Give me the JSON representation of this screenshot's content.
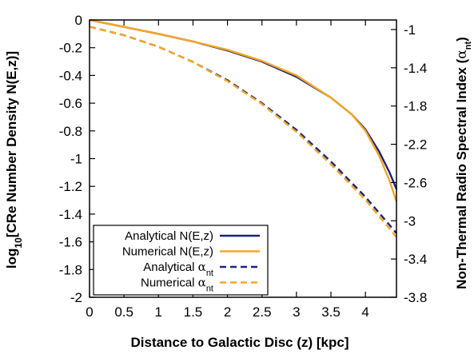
{
  "chart_data": {
    "type": "line",
    "xlabel": "Distance to Galactic Disc (z) [kpc]",
    "ylabel_left": {
      "prefix": "log",
      "sub": "10",
      "rest": "[CRe Number Density N(E,z)]"
    },
    "ylabel_right": {
      "text": "Non-Thermal Radio Spectral Index (",
      "sym": "α",
      "sub": "nt",
      "close": ")"
    },
    "xlim": [
      0,
      4.45
    ],
    "ylim_left": [
      -2,
      0
    ],
    "ylim_right": [
      -3.8,
      -0.9
    ],
    "xticks": [
      "0",
      "0.5",
      "1",
      "1.5",
      "2",
      "2.5",
      "3",
      "3.5",
      "4"
    ],
    "yticks_left": [
      "0",
      "-0.2",
      "-0.4",
      "-0.6",
      "-0.8",
      "-1",
      "-1.2",
      "-1.4",
      "-1.6",
      "-1.8",
      "-2"
    ],
    "yticks_right": [
      "-1",
      "-1.4",
      "-1.8",
      "-2.2",
      "-2.6",
      "-3",
      "-3.4",
      "-3.8"
    ],
    "grid": false,
    "legend_position": "bottom-left",
    "series": [
      {
        "name": "Analytical N(E,z)",
        "label": {
          "text": "Analytical N(E,z)"
        },
        "axis": "left",
        "style": "solid",
        "color": "#1a237e",
        "x": [
          0,
          0.5,
          1,
          1.5,
          2,
          2.5,
          3,
          3.5,
          3.8,
          4,
          4.2,
          4.35,
          4.45
        ],
        "y": [
          0,
          -0.05,
          -0.1,
          -0.155,
          -0.22,
          -0.3,
          -0.41,
          -0.56,
          -0.68,
          -0.79,
          -0.95,
          -1.1,
          -1.22
        ]
      },
      {
        "name": "Numerical N(E,z)",
        "label": {
          "text": "Numerical N(E,z)"
        },
        "axis": "left",
        "style": "solid",
        "color": "#f5a623",
        "x": [
          0,
          0.5,
          1,
          1.5,
          2,
          2.5,
          3,
          3.5,
          3.8,
          4,
          4.2,
          4.35,
          4.45
        ],
        "y": [
          0,
          -0.05,
          -0.1,
          -0.155,
          -0.215,
          -0.295,
          -0.4,
          -0.56,
          -0.68,
          -0.8,
          -0.98,
          -1.16,
          -1.31
        ]
      },
      {
        "name": "Analytical α_nt",
        "label": {
          "text": "Analytical ",
          "sym": "α",
          "sub": "nt"
        },
        "axis": "right",
        "style": "dashed",
        "color": "#1a237e",
        "x": [
          0,
          0.5,
          1,
          1.5,
          2,
          2.5,
          3,
          3.5,
          4,
          4.45
        ],
        "y": [
          -0.97,
          -1.06,
          -1.18,
          -1.34,
          -1.53,
          -1.77,
          -2.05,
          -2.38,
          -2.75,
          -3.13
        ]
      },
      {
        "name": "Numerical α_nt",
        "label": {
          "text": "Numerical ",
          "sym": "α",
          "sub": "nt"
        },
        "axis": "right",
        "style": "dashed",
        "color": "#f5a623",
        "x": [
          0,
          0.5,
          1,
          1.5,
          2,
          2.5,
          3,
          3.5,
          4,
          4.45
        ],
        "y": [
          -0.97,
          -1.06,
          -1.18,
          -1.34,
          -1.54,
          -1.78,
          -2.07,
          -2.41,
          -2.78,
          -3.17
        ]
      }
    ]
  }
}
